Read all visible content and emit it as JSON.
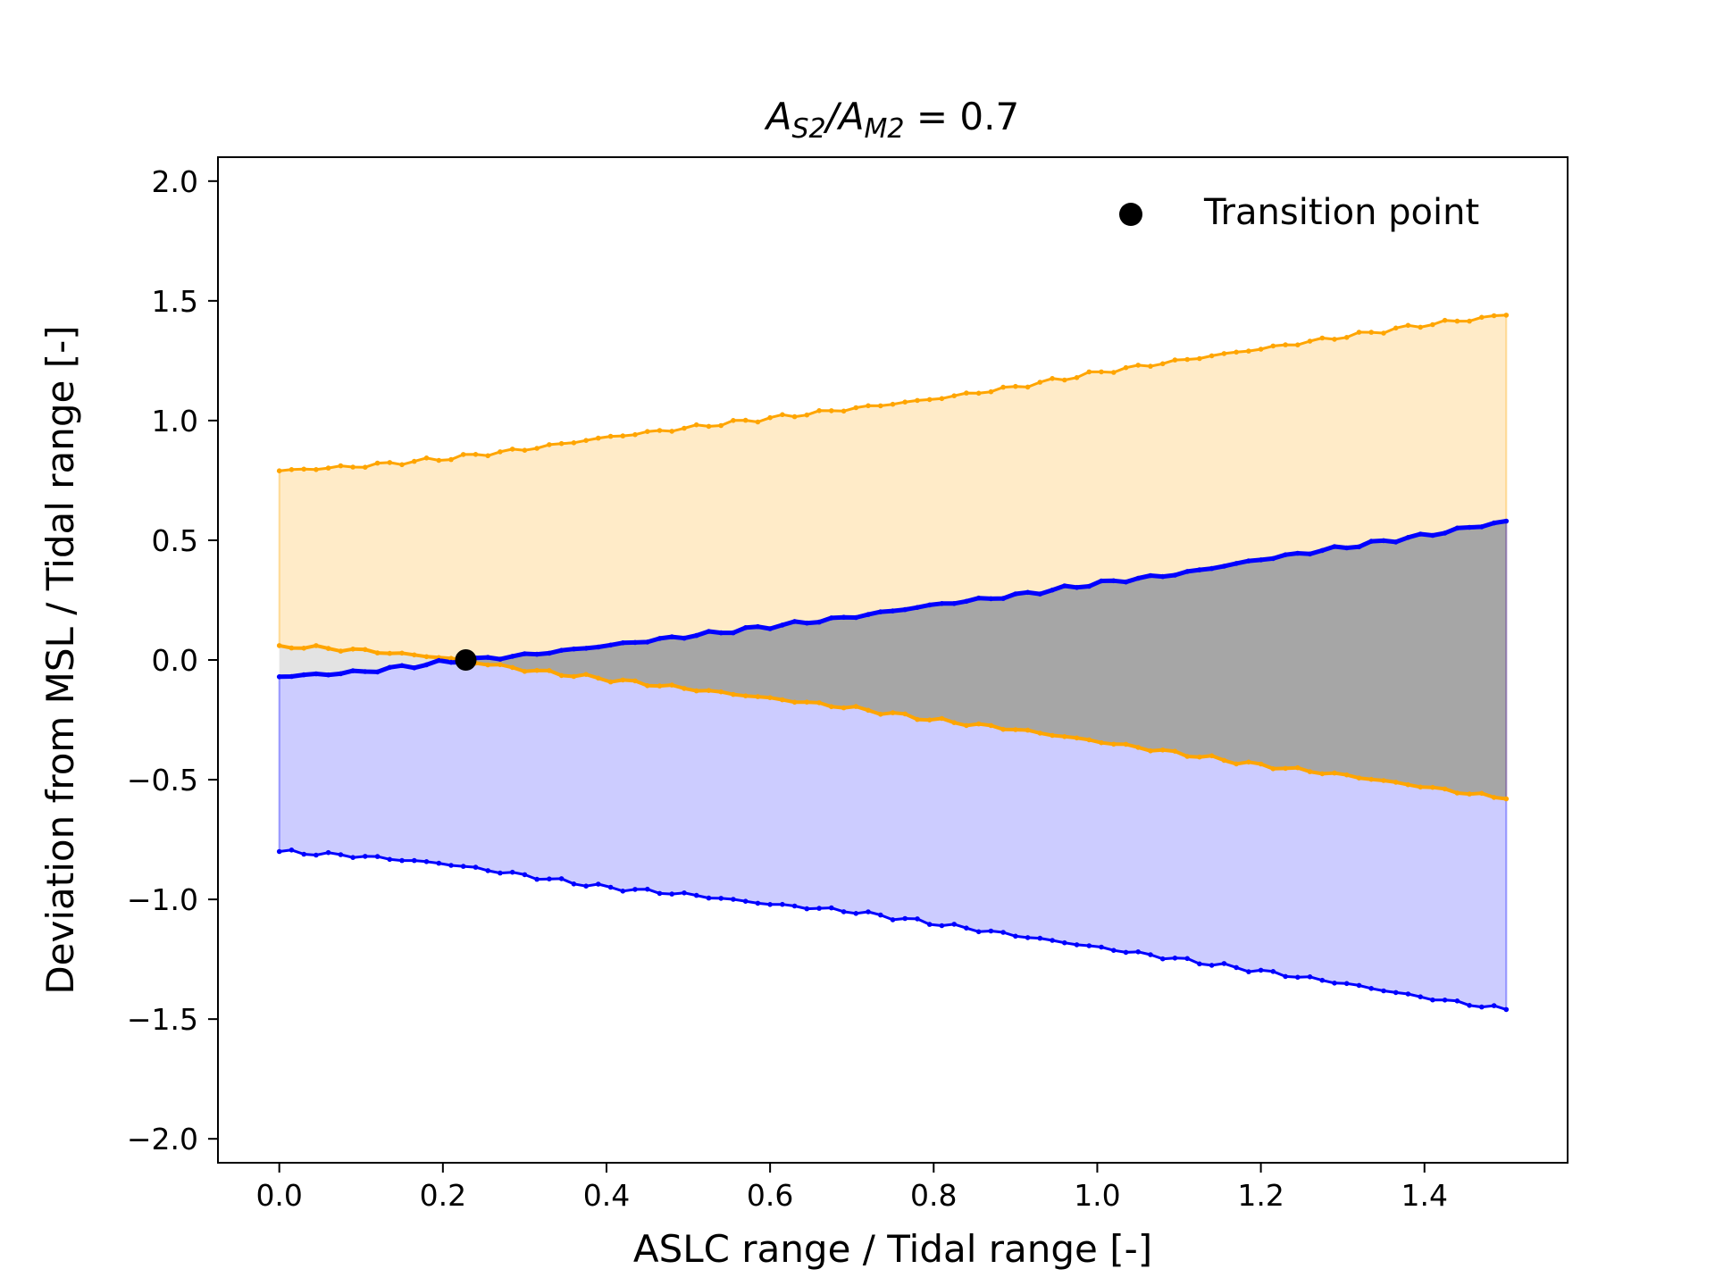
{
  "chart_data": {
    "type": "line",
    "title": {
      "parts": [
        {
          "text": "A",
          "style": "italic"
        },
        {
          "text": "S2",
          "style": "sub"
        },
        {
          "text": "/",
          "style": "italic"
        },
        {
          "text": "A",
          "style": "italic"
        },
        {
          "text": "M2",
          "style": "sub"
        },
        {
          "text": " = 0.7",
          "style": "normal"
        }
      ]
    },
    "xlabel": "ASLC range / Tidal range [-]",
    "ylabel": "Deviation from MSL / Tidal range [-]",
    "xlim": [
      -0.075,
      1.575
    ],
    "ylim": [
      -2.1,
      2.1
    ],
    "xticks": [
      {
        "value": 0.0,
        "label": "0.0"
      },
      {
        "value": 0.2,
        "label": "0.2"
      },
      {
        "value": 0.4,
        "label": "0.4"
      },
      {
        "value": 0.6,
        "label": "0.6"
      },
      {
        "value": 0.8,
        "label": "0.8"
      },
      {
        "value": 1.0,
        "label": "1.0"
      },
      {
        "value": 1.2,
        "label": "1.2"
      },
      {
        "value": 1.4,
        "label": "1.4"
      }
    ],
    "yticks": [
      {
        "value": -2.0,
        "label": "−2.0"
      },
      {
        "value": -1.5,
        "label": "−1.5"
      },
      {
        "value": -1.0,
        "label": "−1.0"
      },
      {
        "value": -0.5,
        "label": "−0.5"
      },
      {
        "value": 0.0,
        "label": "0.0"
      },
      {
        "value": 0.5,
        "label": "0.5"
      },
      {
        "value": 1.0,
        "label": "1.0"
      },
      {
        "value": 1.5,
        "label": "1.5"
      },
      {
        "value": 2.0,
        "label": "2.0"
      }
    ],
    "grid": false,
    "legend": {
      "position": "top-right",
      "entries": [
        {
          "label": "Transition point",
          "marker": "circle",
          "color": "#000000"
        }
      ]
    },
    "x": [
      0.0,
      0.1,
      0.2,
      0.3,
      0.4,
      0.5,
      0.6,
      0.7,
      0.8,
      0.9,
      1.0,
      1.1,
      1.2,
      1.3,
      1.4,
      1.5
    ],
    "series": [
      {
        "role": "orange_upper",
        "color": "#ffa500",
        "values": [
          0.79,
          0.81,
          0.84,
          0.88,
          0.93,
          0.97,
          1.01,
          1.05,
          1.09,
          1.14,
          1.2,
          1.25,
          1.3,
          1.35,
          1.4,
          1.44
        ]
      },
      {
        "role": "orange_lower",
        "color": "#ffa500",
        "values": [
          0.06,
          0.04,
          0.01,
          -0.04,
          -0.08,
          -0.12,
          -0.16,
          -0.2,
          -0.25,
          -0.29,
          -0.34,
          -0.39,
          -0.44,
          -0.48,
          -0.53,
          -0.58
        ]
      },
      {
        "role": "blue_upper",
        "color": "#0000ff",
        "values": [
          -0.07,
          -0.05,
          -0.01,
          0.02,
          0.06,
          0.1,
          0.14,
          0.18,
          0.23,
          0.27,
          0.32,
          0.36,
          0.42,
          0.47,
          0.52,
          0.58
        ]
      },
      {
        "role": "blue_lower",
        "color": "#0000ff",
        "values": [
          -0.8,
          -0.82,
          -0.85,
          -0.9,
          -0.95,
          -0.98,
          -1.02,
          -1.05,
          -1.1,
          -1.15,
          -1.2,
          -1.25,
          -1.3,
          -1.35,
          -1.41,
          -1.46
        ]
      }
    ],
    "fills": {
      "orange_band": "#ffebc8",
      "blue_band": "#ccccff",
      "overlap_before_transition": "#e3e3e3",
      "overlap_after_transition": "#a6a6a6"
    },
    "transition_point": {
      "x": 0.228,
      "y": 0.0,
      "color": "#000000"
    }
  }
}
